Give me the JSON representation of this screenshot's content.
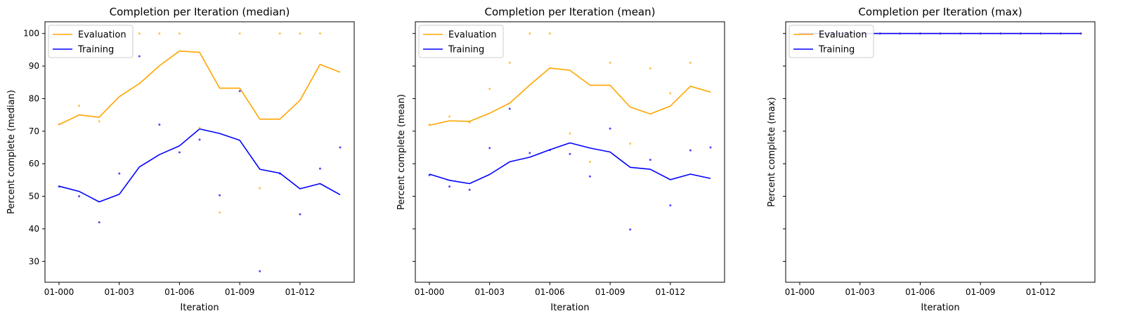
{
  "figure": {
    "sharey": true,
    "ylim": [
      23.6,
      103.6
    ],
    "yticks": [
      30,
      40,
      50,
      60,
      70,
      80,
      90,
      100
    ],
    "colors": {
      "evaluation": "#ffa500",
      "training": "#0000ff"
    }
  },
  "chart_data": [
    {
      "type": "line",
      "title": "Completion per Iteration (median)",
      "xlabel": "Iteration",
      "ylabel": "Percent complete (median)",
      "categories": [
        "01-000",
        "01-001",
        "01-002",
        "01-003",
        "01-004",
        "01-005",
        "01-006",
        "01-007",
        "01-008",
        "01-009",
        "01-010",
        "01-011",
        "01-012",
        "01-013",
        "01-014"
      ],
      "xticklabels": [
        "01-000",
        "01-003",
        "01-006",
        "01-009",
        "01-012"
      ],
      "show_ytick_labels": true,
      "legend": {
        "position": "upper-left",
        "entries": [
          "Evaluation",
          "Training"
        ]
      },
      "series": [
        {
          "name": "Evaluation",
          "color": "#ffa500",
          "values": [
            72.0,
            75.0,
            74.3,
            80.6,
            84.6,
            90.1,
            94.6,
            94.2,
            83.2,
            83.2,
            73.7,
            73.7,
            79.5,
            90.5,
            88.1
          ],
          "points": [
            72.1,
            77.8,
            73.0,
            null,
            100.0,
            100.0,
            100.0,
            71.0,
            45.0,
            100.0,
            52.5,
            100.0,
            100.0,
            100.0,
            null
          ]
        },
        {
          "name": "Training",
          "color": "#0000ff",
          "values": [
            53.1,
            51.5,
            48.3,
            50.6,
            59.0,
            62.8,
            65.5,
            70.7,
            69.3,
            67.2,
            58.3,
            57.1,
            52.3,
            53.9,
            50.5
          ],
          "points": [
            53.0,
            50.0,
            42.0,
            57.0,
            93.0,
            72.0,
            63.5,
            67.4,
            50.3,
            82.3,
            27.0,
            57.0,
            44.5,
            58.5,
            65.0
          ]
        }
      ]
    },
    {
      "type": "line",
      "title": "Completion per Iteration (mean)",
      "xlabel": "Iteration",
      "ylabel": "Percent complete (mean)",
      "categories": [
        "01-000",
        "01-001",
        "01-002",
        "01-003",
        "01-004",
        "01-005",
        "01-006",
        "01-007",
        "01-008",
        "01-009",
        "01-010",
        "01-011",
        "01-012",
        "01-013",
        "01-014"
      ],
      "xticklabels": [
        "01-000",
        "01-003",
        "01-006",
        "01-009",
        "01-012"
      ],
      "show_ytick_labels": false,
      "legend": {
        "position": "upper-left",
        "entries": [
          "Evaluation",
          "Training"
        ]
      },
      "series": [
        {
          "name": "Evaluation",
          "color": "#ffa500",
          "values": [
            71.8,
            73.2,
            73.0,
            75.5,
            78.6,
            84.2,
            89.4,
            88.7,
            84.1,
            84.1,
            77.4,
            75.3,
            77.7,
            83.8,
            82.0
          ],
          "points": [
            72.0,
            74.5,
            72.7,
            83.0,
            91.0,
            100.0,
            100.0,
            69.3,
            60.6,
            91.0,
            66.2,
            89.3,
            81.6,
            91.0,
            null
          ]
        },
        {
          "name": "Training",
          "color": "#0000ff",
          "values": [
            56.8,
            54.9,
            53.9,
            56.7,
            60.6,
            62.0,
            64.3,
            66.4,
            64.8,
            63.6,
            58.9,
            58.3,
            55.1,
            56.8,
            55.5
          ],
          "points": [
            56.5,
            53.0,
            52.0,
            64.8,
            76.9,
            63.3,
            64.2,
            63.0,
            56.1,
            70.8,
            39.8,
            61.2,
            47.2,
            64.1,
            65.0
          ]
        }
      ]
    },
    {
      "type": "line",
      "title": "Completion per Iteration (max)",
      "xlabel": "Iteration",
      "ylabel": "Percent complete (max)",
      "categories": [
        "01-000",
        "01-001",
        "01-002",
        "01-003",
        "01-004",
        "01-005",
        "01-006",
        "01-007",
        "01-008",
        "01-009",
        "01-010",
        "01-011",
        "01-012",
        "01-013",
        "01-014"
      ],
      "xticklabels": [
        "01-000",
        "01-003",
        "01-006",
        "01-009",
        "01-012"
      ],
      "show_ytick_labels": false,
      "legend": {
        "position": "upper-left",
        "entries": [
          "Evaluation",
          "Training"
        ]
      },
      "series": [
        {
          "name": "Evaluation",
          "color": "#ffa500",
          "values": [
            100,
            100,
            100,
            100,
            100,
            100,
            100,
            100,
            100,
            100,
            100,
            100,
            100,
            100,
            100
          ],
          "points": [
            100,
            100,
            100,
            100,
            100,
            100,
            100,
            100,
            100,
            100,
            100,
            100,
            100,
            100,
            100
          ]
        },
        {
          "name": "Training",
          "color": "#0000ff",
          "values": [
            100,
            100,
            100,
            100,
            100,
            100,
            100,
            100,
            100,
            100,
            100,
            100,
            100,
            100,
            100
          ],
          "points": [
            100,
            100,
            100,
            100,
            100,
            100,
            100,
            100,
            100,
            100,
            100,
            100,
            100,
            100,
            100
          ]
        }
      ]
    }
  ]
}
